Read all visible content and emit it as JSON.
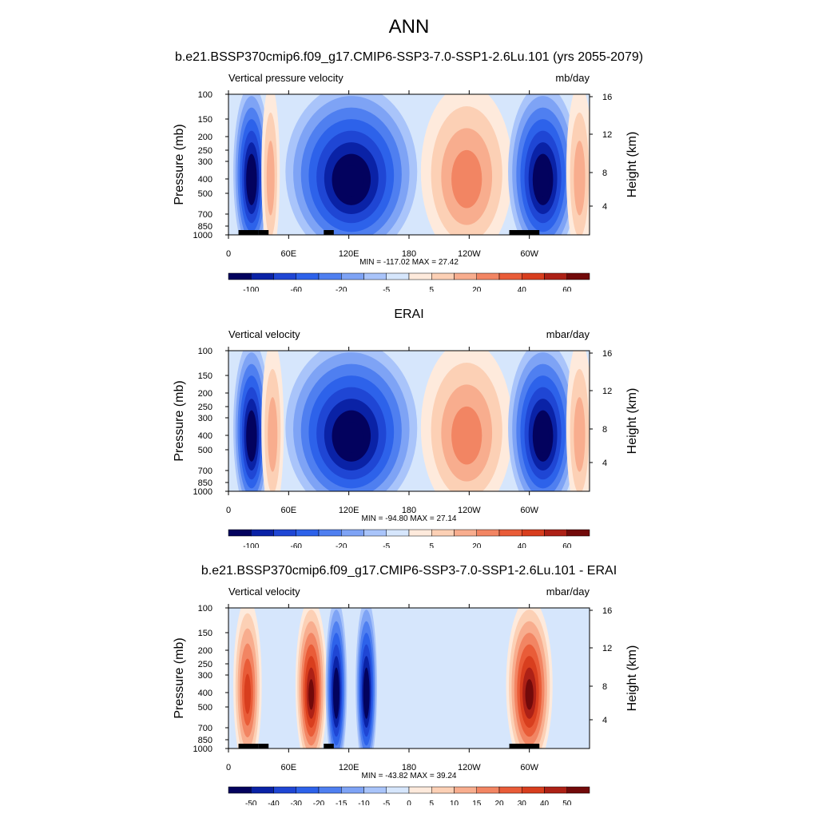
{
  "figure": {
    "title": "ANN",
    "case_title": "b.e21.BSSP370cmip6.f09_g17.CMIP6-SSP3-7.0-SSP1-2.6Lu.101 (yrs 2055-2079)"
  },
  "chart_data": [
    {
      "type": "heatmap",
      "panel_title": "",
      "left_label": "Vertical pressure velocity",
      "right_label": "mb/day",
      "ylabel": "Pressure (mb)",
      "ylabel_right": "Height (km)",
      "yticks": [
        "100",
        "150",
        "200",
        "250",
        "300",
        "400",
        "500",
        "700",
        "850",
        "1000"
      ],
      "yticks_right": [
        "16",
        "12",
        "8",
        "4"
      ],
      "xticks": [
        "0",
        "60E",
        "120E",
        "180",
        "120W",
        "60W"
      ],
      "stats": "MIN = -117.02  MAX =  27.42",
      "colorbar_labels": [
        "-100",
        "-60",
        "-20",
        "-5",
        "5",
        "20",
        "40",
        "60"
      ],
      "colorbar_colors": [
        "#03025e",
        "#0a22a6",
        "#1f46d4",
        "#2d62ea",
        "#4f7ff0",
        "#7ea3f5",
        "#a9c4fa",
        "#d6e6fc",
        "#feeadc",
        "#fcd0b5",
        "#f8ad8e",
        "#f28563",
        "#e95c38",
        "#d83e1e",
        "#ad2116",
        "#720a0a"
      ],
      "lon_range": [
        0,
        360
      ],
      "lev_range": [
        100,
        1000
      ],
      "features": [
        {
          "name": "africa-ascent",
          "lon": [
            8,
            38
          ],
          "sign": "negative",
          "peak": -100
        },
        {
          "name": "east-africa-descent",
          "lon": [
            36,
            48
          ],
          "sign": "positive",
          "peak": 15
        },
        {
          "name": "maritime-continent-ascent",
          "lon": [
            60,
            185
          ],
          "sign": "negative",
          "peak": -117
        },
        {
          "name": "east-pacific-descent",
          "lon": [
            195,
            280
          ],
          "sign": "positive",
          "peak": 27
        },
        {
          "name": "south-america-ascent",
          "lon": [
            282,
            345
          ],
          "sign": "negative",
          "peak": -100
        },
        {
          "name": "atlantic-descent",
          "lon": [
            340,
            360
          ],
          "sign": "positive",
          "peak": 15
        }
      ],
      "land_mask": [
        "africa",
        "indonesia",
        "south-america"
      ]
    },
    {
      "type": "heatmap",
      "panel_title": "ERAI",
      "left_label": "Vertical velocity",
      "right_label": "mbar/day",
      "ylabel": "Pressure (mb)",
      "ylabel_right": "Height (km)",
      "yticks": [
        "100",
        "150",
        "200",
        "250",
        "300",
        "400",
        "500",
        "700",
        "850",
        "1000"
      ],
      "yticks_right": [
        "16",
        "12",
        "8",
        "4"
      ],
      "xticks": [
        "0",
        "60E",
        "120E",
        "180",
        "120W",
        "60W"
      ],
      "stats": "MIN = -94.80  MAX =  27.14",
      "colorbar_labels": [
        "-100",
        "-60",
        "-20",
        "-5",
        "5",
        "20",
        "40",
        "60"
      ],
      "colorbar_colors": [
        "#03025e",
        "#0a22a6",
        "#1f46d4",
        "#2d62ea",
        "#4f7ff0",
        "#7ea3f5",
        "#a9c4fa",
        "#d6e6fc",
        "#feeadc",
        "#fcd0b5",
        "#f8ad8e",
        "#f28563",
        "#e95c38",
        "#d83e1e",
        "#ad2116",
        "#720a0a"
      ],
      "lon_range": [
        0,
        360
      ],
      "lev_range": [
        100,
        1000
      ],
      "features": [
        {
          "name": "africa-ascent",
          "lon": [
            8,
            38
          ],
          "sign": "negative",
          "peak": -90
        },
        {
          "name": "east-africa-descent",
          "lon": [
            36,
            52
          ],
          "sign": "positive",
          "peak": 20
        },
        {
          "name": "maritime-continent-ascent",
          "lon": [
            60,
            185
          ],
          "sign": "negative",
          "peak": -95
        },
        {
          "name": "east-pacific-descent",
          "lon": [
            195,
            280
          ],
          "sign": "positive",
          "peak": 27
        },
        {
          "name": "south-america-ascent",
          "lon": [
            282,
            345
          ],
          "sign": "negative",
          "peak": -90
        },
        {
          "name": "atlantic-descent",
          "lon": [
            340,
            360
          ],
          "sign": "positive",
          "peak": 10
        }
      ],
      "land_mask": []
    },
    {
      "type": "heatmap",
      "panel_title": "b.e21.BSSP370cmip6.f09_g17.CMIP6-SSP3-7.0-SSP1-2.6Lu.101 - ERAI",
      "left_label": "Vertical velocity",
      "right_label": "mbar/day",
      "ylabel": "Pressure (mb)",
      "ylabel_right": "Height (km)",
      "yticks": [
        "100",
        "150",
        "200",
        "250",
        "300",
        "400",
        "500",
        "700",
        "850",
        "1000"
      ],
      "yticks_right": [
        "16",
        "12",
        "8",
        "4"
      ],
      "xticks": [
        "0",
        "60E",
        "120E",
        "180",
        "120W",
        "60W"
      ],
      "stats": "MIN = -43.82  MAX =  39.24",
      "colorbar_labels": [
        "-50",
        "-40",
        "-30",
        "-20",
        "-15",
        "-10",
        "-5",
        "0",
        "5",
        "10",
        "15",
        "20",
        "30",
        "40",
        "50"
      ],
      "colorbar_colors": [
        "#03025e",
        "#0a22a6",
        "#1f46d4",
        "#2d62ea",
        "#4f7ff0",
        "#7ea3f5",
        "#a9c4fa",
        "#d6e6fc",
        "#feeadc",
        "#fcd0b5",
        "#f8ad8e",
        "#f28563",
        "#e95c38",
        "#d83e1e",
        "#ad2116",
        "#720a0a"
      ],
      "lon_range": [
        0,
        360
      ],
      "lev_range": [
        100,
        1000
      ],
      "features": [
        {
          "name": "africa-diff",
          "lon": [
            8,
            30
          ],
          "sign": "positive",
          "peak": 25
        },
        {
          "name": "indian-ocean-diff",
          "lon": [
            70,
            95
          ],
          "sign": "positive",
          "peak": 39
        },
        {
          "name": "maritime-diff-1",
          "lon": [
            100,
            115
          ],
          "sign": "negative",
          "peak": -40
        },
        {
          "name": "maritime-diff-2",
          "lon": [
            130,
            145
          ],
          "sign": "negative",
          "peak": -44
        },
        {
          "name": "south-america-diff",
          "lon": [
            280,
            320
          ],
          "sign": "positive",
          "peak": 35
        }
      ],
      "land_mask": [
        "africa",
        "indonesia",
        "south-america"
      ]
    }
  ]
}
